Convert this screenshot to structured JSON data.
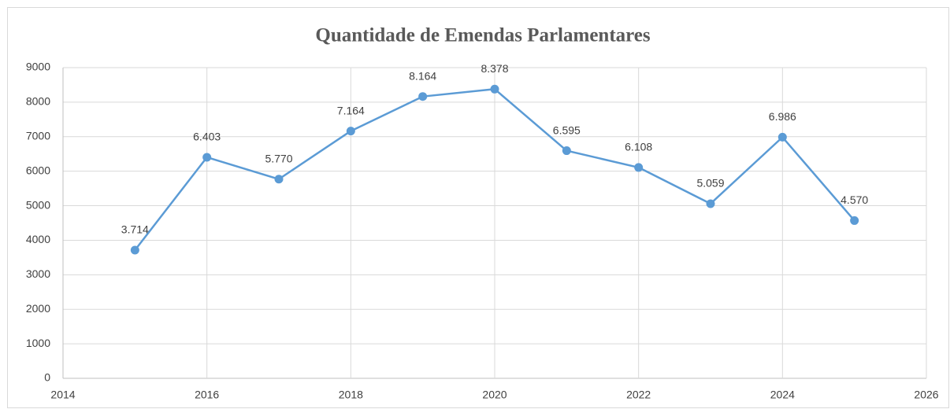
{
  "chart_data": {
    "type": "line",
    "title": "Quantidade de Emendas Parlamentares",
    "x": [
      2015,
      2016,
      2017,
      2018,
      2019,
      2020,
      2021,
      2022,
      2023,
      2024,
      2025
    ],
    "values": [
      3714,
      6403,
      5770,
      7164,
      8164,
      8378,
      6595,
      6108,
      5059,
      6986,
      4570
    ],
    "value_labels": [
      "3.714",
      "6.403",
      "5.770",
      "7.164",
      "8.164",
      "8.378",
      "6.595",
      "6.108",
      "5.059",
      "6.986",
      "4.570"
    ],
    "color": "#5b9bd5",
    "xlim": [
      2014,
      2026
    ],
    "xticks": [
      2014,
      2016,
      2018,
      2020,
      2022,
      2024,
      2026
    ],
    "ylim": [
      0,
      9000
    ],
    "yticks": [
      0,
      1000,
      2000,
      3000,
      4000,
      5000,
      6000,
      7000,
      8000,
      9000
    ],
    "grid": true
  }
}
